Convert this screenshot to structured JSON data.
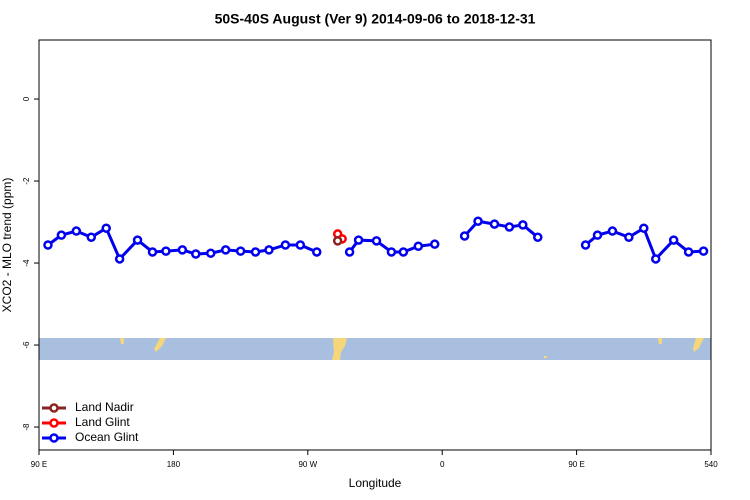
{
  "chart_data": {
    "type": "line",
    "title": "50S-40S August (Ver 9)   2014-09-06 to 2018-12-31",
    "x_label": "Longitude",
    "y_label": "XCO2 - MLO trend (ppm)",
    "xlim": [
      90,
      540
    ],
    "ylim": [
      -8.56,
      1.44
    ],
    "xticks": [
      {
        "value": 90,
        "label": "90 E"
      },
      180,
      {
        "value": 270,
        "label": "90 W"
      },
      {
        "value": 360,
        "label": "0"
      },
      {
        "value": 450,
        "label": "90 E"
      },
      540
    ],
    "yticks": [
      0,
      -2,
      -4,
      -6,
      -8
    ],
    "legend": "bottom-left",
    "series": [
      {
        "name": "Land Nadir",
        "color": "#8b2323",
        "x": [
          290
        ],
        "values": [
          -3.46
        ]
      },
      {
        "name": "Land Glint",
        "color": "#ff0000",
        "x": [
          290,
          293
        ],
        "values": [
          -3.29,
          -3.41
        ]
      },
      {
        "name": "Ocean Glint",
        "color": "#0000ee",
        "x": [
          96,
          105,
          115,
          125,
          135,
          144,
          156,
          166,
          175,
          186,
          195,
          205,
          215,
          225,
          235,
          244,
          255,
          265,
          276,
          287,
          298,
          304,
          316,
          326,
          334,
          344,
          355,
          365,
          375,
          384,
          395,
          405,
          414,
          424,
          440,
          456,
          464,
          474,
          485,
          495,
          503,
          515,
          525,
          535
        ],
        "values": [
          -3.56,
          -3.32,
          -3.22,
          -3.37,
          -3.15,
          -3.9,
          -3.44,
          -3.73,
          -3.71,
          -3.68,
          -3.78,
          -3.76,
          -3.68,
          -3.71,
          -3.73,
          -3.68,
          -3.56,
          -3.56,
          -3.73,
          null,
          -3.73,
          -3.44,
          -3.46,
          -3.73,
          -3.73,
          -3.59,
          -3.54,
          null,
          -3.34,
          -2.98,
          -3.05,
          -3.12,
          -3.07,
          -3.37,
          null,
          -3.56,
          -3.32,
          -3.22,
          -3.37,
          -3.15,
          -3.9,
          -3.44,
          -3.73,
          -3.71
        ]
      }
    ]
  }
}
